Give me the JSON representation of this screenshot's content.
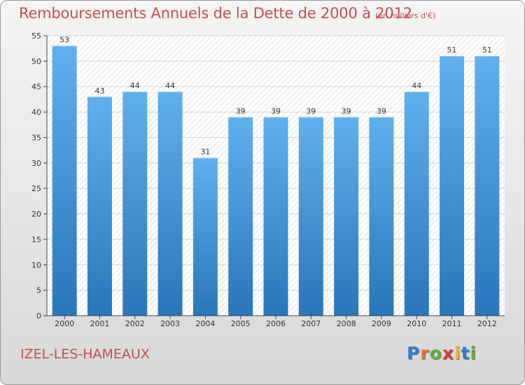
{
  "chart_data": {
    "type": "bar",
    "title": "Remboursements Annuels de la Dette de 2000 à 2012",
    "subtitle": "(en milliers d'€)",
    "categories": [
      "2000",
      "2001",
      "2002",
      "2003",
      "2004",
      "2005",
      "2006",
      "2007",
      "2008",
      "2009",
      "2010",
      "2011",
      "2012"
    ],
    "values": [
      53,
      43,
      44,
      44,
      31,
      39,
      39,
      39,
      39,
      39,
      44,
      51,
      51
    ],
    "ylim": [
      0,
      55
    ],
    "yticks": [
      0,
      5,
      10,
      15,
      20,
      25,
      30,
      35,
      40,
      45,
      50,
      55
    ],
    "grid": true,
    "bar_color": "#3a8fd4"
  },
  "location": "IZEL-LES-HAMEAUX",
  "logo": {
    "letters": [
      "P",
      "r",
      "o",
      "x",
      "i",
      "t",
      "i"
    ],
    "colors": [
      "#2e7fd1",
      "#e0712a",
      "#62ad3a",
      "#d43a3a",
      "#f2b23a",
      "#2e7fd1",
      "#62ad3a"
    ]
  }
}
